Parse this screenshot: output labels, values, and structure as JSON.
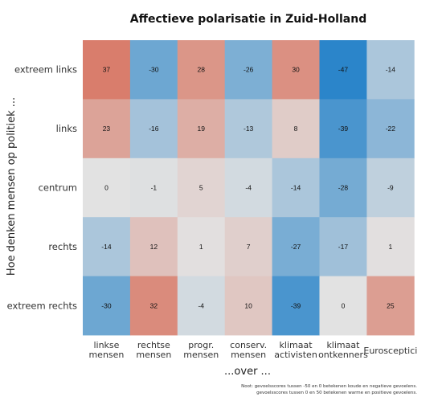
{
  "chart_data": {
    "type": "heatmap",
    "title": "Affectieve polarisatie in Zuid-Holland",
    "ylabel": "Hoe denken mensen op politiek ...",
    "xlabel": "...over ...",
    "rows": [
      "extreem links",
      "links",
      "centrum",
      "rechts",
      "extreem rechts"
    ],
    "columns": [
      [
        "linkse",
        "mensen"
      ],
      [
        "rechtse",
        "mensen"
      ],
      [
        "progr.",
        "mensen"
      ],
      [
        "conserv.",
        "mensen"
      ],
      [
        "klimaat",
        "activisten"
      ],
      [
        "klimaat",
        "ontkenners"
      ],
      [
        "Eurosceptici"
      ]
    ],
    "values": [
      [
        37,
        -30,
        28,
        -26,
        30,
        -47,
        -14
      ],
      [
        23,
        -16,
        19,
        -13,
        8,
        -39,
        -22
      ],
      [
        0,
        -1,
        5,
        -4,
        -14,
        -28,
        -9
      ],
      [
        -14,
        12,
        1,
        7,
        -27,
        -17,
        1
      ],
      [
        -30,
        32,
        -4,
        10,
        -39,
        0,
        25
      ]
    ],
    "colormap": {
      "negative": "#1f7fc8",
      "neutral": "#e2e2e2",
      "positive": "#d65a42",
      "vmin": -50,
      "vmax": 50
    },
    "note": [
      "Noot: gevoelsscores tussen -50 en 0 betekenen koude en negatieve gevoelens.",
      "gevoelsscores tussen 0 en 50 betekenen warme en positieve gevoelens."
    ]
  }
}
